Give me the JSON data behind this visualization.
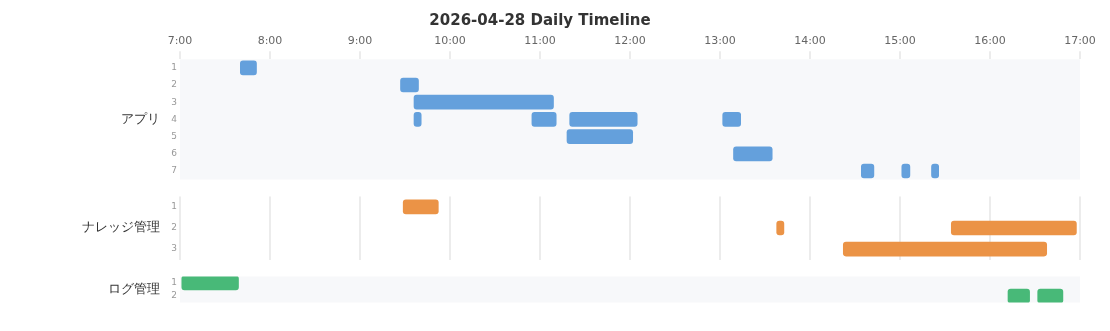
{
  "chart_data": [
    {
      "type": "bar",
      "title": "2026-04-28 Daily Timeline",
      "ylabel": "アプリ",
      "orientation": "horizontal",
      "grid": false,
      "categories": [
        "1",
        "2",
        "3",
        "4",
        "5",
        "6",
        "7"
      ],
      "xlim": [
        7,
        17
      ],
      "xticks": [
        {
          "value": 7,
          "label": "7:00"
        },
        {
          "value": 8,
          "label": "8:00"
        },
        {
          "value": 9,
          "label": "9:00"
        },
        {
          "value": 10,
          "label": "10:00"
        },
        {
          "value": 11,
          "label": "11:00"
        },
        {
          "value": 12,
          "label": "12:00"
        },
        {
          "value": 13,
          "label": "13:00"
        },
        {
          "value": 14,
          "label": "14:00"
        },
        {
          "value": 15,
          "label": "15:00"
        },
        {
          "value": 16,
          "label": "16:00"
        },
        {
          "value": 17,
          "label": "17:00"
        }
      ],
      "series": [
        {
          "color": "#64a0dc",
          "base": [
            7.67,
            9.45,
            9.6,
            9.6,
            11.3,
            13.15,
            14.57
          ],
          "values": [
            0.18,
            0.2,
            1.55,
            0.08,
            0.73,
            0.43,
            0.14
          ]
        },
        {
          "color": "#64a0dc",
          "base": [
            null,
            null,
            null,
            10.91,
            null,
            null,
            15.02
          ],
          "values": [
            null,
            null,
            null,
            0.27,
            null,
            null,
            0.09
          ]
        },
        {
          "color": "#64a0dc",
          "base": [
            null,
            null,
            null,
            11.33,
            null,
            null,
            15.35
          ],
          "values": [
            null,
            null,
            null,
            0.75,
            null,
            null,
            0.08
          ]
        },
        {
          "color": "#64a0dc",
          "base": [
            null,
            null,
            null,
            13.03,
            null,
            null,
            null
          ],
          "values": [
            null,
            null,
            null,
            0.2,
            null,
            null,
            null
          ]
        }
      ]
    },
    {
      "type": "bar",
      "ylabel": "ナレッジ管理",
      "orientation": "horizontal",
      "grid": "x",
      "tick_labels": "y",
      "categories": [
        "1",
        "2",
        "3"
      ],
      "xlim": [
        7,
        17
      ],
      "xticks": [
        7,
        8,
        9,
        10,
        11,
        12,
        13,
        14,
        15,
        16,
        17
      ],
      "series": [
        {
          "color": "#eb9346",
          "base": [
            9.48,
            13.63,
            14.37
          ],
          "values": [
            0.39,
            0.08,
            2.26
          ]
        },
        {
          "color": "#eb9346",
          "base": [
            null,
            15.57,
            null
          ],
          "values": [
            null,
            1.39,
            null
          ]
        }
      ]
    },
    {
      "type": "bar",
      "ylabel": "ログ管理",
      "orientation": "horizontal",
      "grid": false,
      "tick_labels": "y",
      "categories": [
        "1",
        "2"
      ],
      "xlim": [
        7,
        17
      ],
      "series": [
        {
          "color": "#48b978",
          "base": [
            7.02,
            16.2
          ],
          "values": [
            0.63,
            0.24
          ]
        },
        {
          "color": "#48b978",
          "base": [
            null,
            16.53
          ],
          "values": [
            null,
            0.28
          ]
        }
      ]
    }
  ]
}
